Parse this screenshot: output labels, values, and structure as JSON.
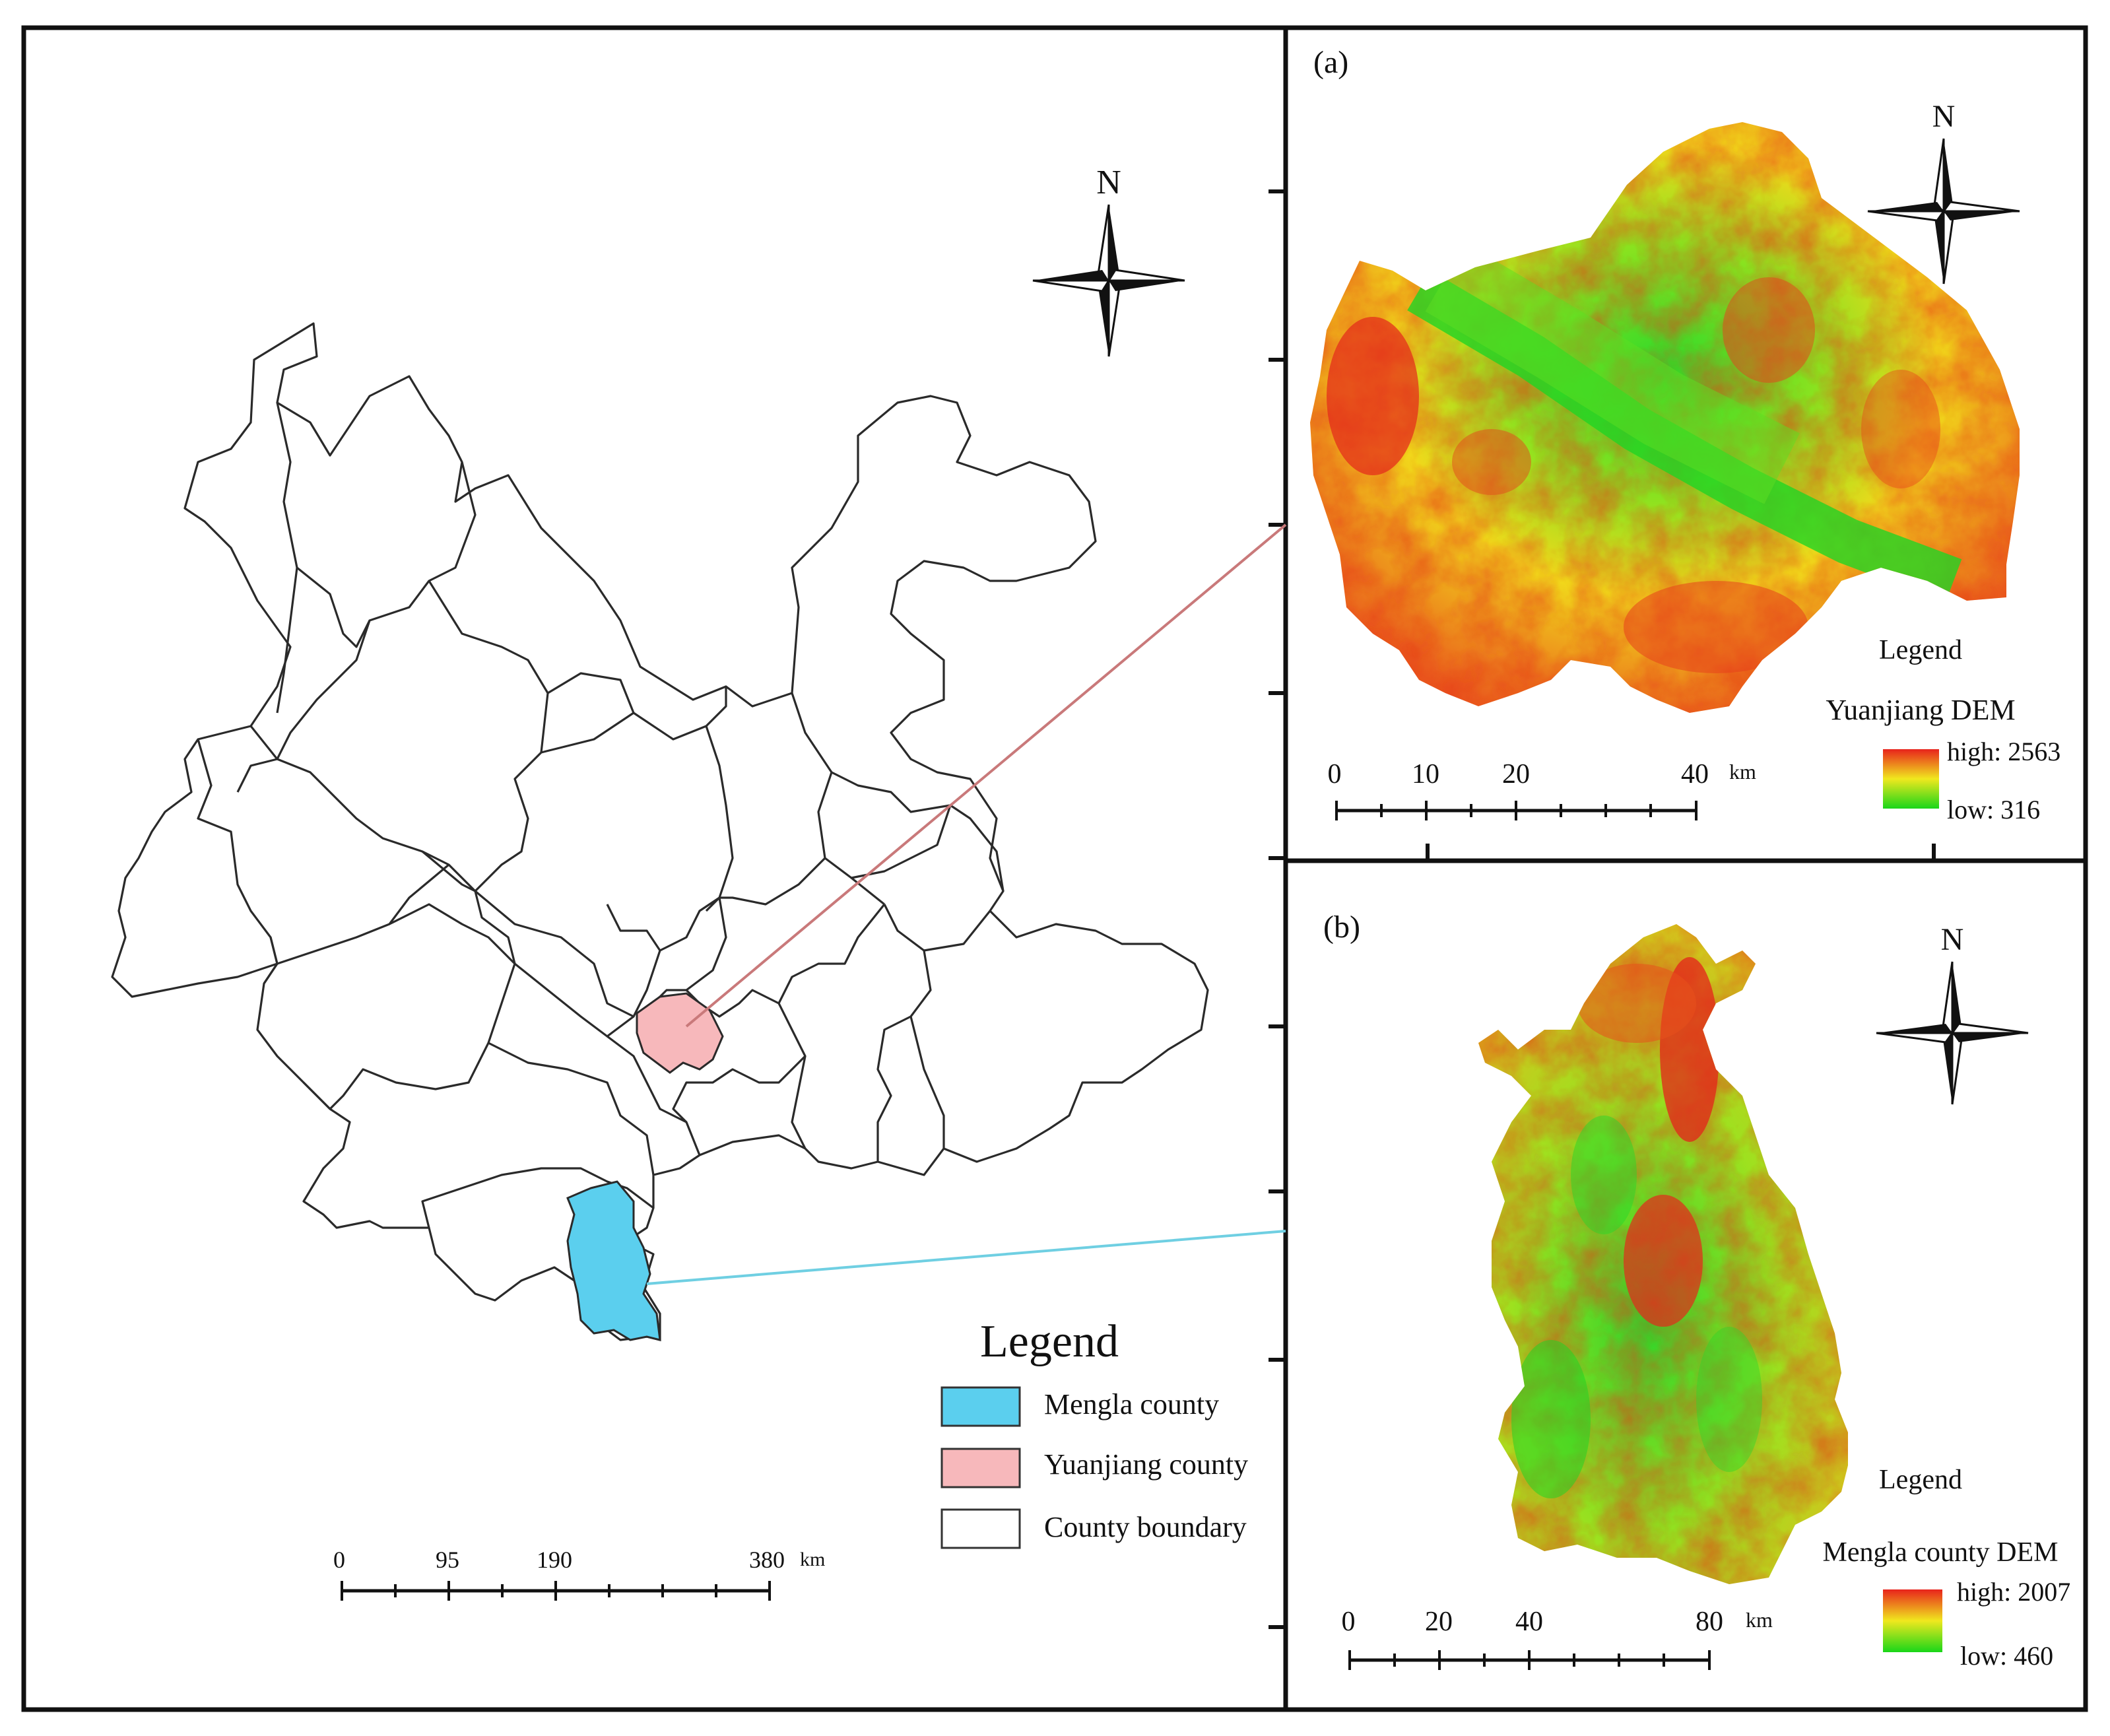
{
  "main_map": {
    "north_label": "N",
    "legend": {
      "title": "Legend",
      "items": [
        {
          "label": "Mengla county",
          "color": "#5bcfee"
        },
        {
          "label": "Yuanjiang county",
          "color": "#f7b8bb"
        },
        {
          "label": "County boundary",
          "color": "#ffffff"
        }
      ]
    },
    "scale": {
      "ticks": [
        "0",
        "95",
        "190",
        "380"
      ],
      "unit": "km"
    },
    "leader_colors": {
      "yuanjiang": "#c9797a",
      "mengla": "#6fcfe2"
    }
  },
  "panel_a": {
    "label": "(a)",
    "north_label": "N",
    "legend_title": "Legend",
    "dem_title": "Yuanjiang DEM",
    "high_label": "high: 2563",
    "low_label": "low: 316",
    "scale": {
      "ticks": [
        "0",
        "10",
        "20",
        "40"
      ],
      "unit": "km"
    }
  },
  "panel_b": {
    "label": "(b)",
    "north_label": "N",
    "legend_title": "Legend",
    "dem_title": "Mengla county DEM",
    "high_label": "high: 2007",
    "low_label": "low: 460",
    "scale": {
      "ticks": [
        "0",
        "20",
        "40",
        "80"
      ],
      "unit": "km"
    }
  },
  "colors": {
    "dem_high": "#e8231c",
    "dem_mid": "#f0e81e",
    "dem_low": "#19d619",
    "frame": "#111111"
  }
}
